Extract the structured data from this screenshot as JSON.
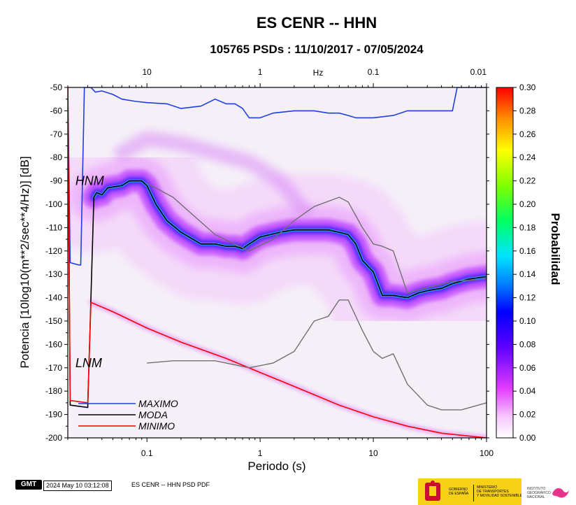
{
  "chart_data": {
    "type": "heatmap",
    "title": "ES CENR -- HHN",
    "subtitle": "105765 PSDs : 11/10/2017 - 07/05/2024",
    "xlabel": "Periodo (s)",
    "ylabel": "Potencia [10log10(m**2/sec**4/Hz)] [dB]",
    "x_scale": "log",
    "xlim": [
      0.02,
      100
    ],
    "ylim": [
      -200,
      -50
    ],
    "x_ticks": [
      "0.1",
      "1",
      "10",
      "100"
    ],
    "x_tick_values": [
      0.1,
      1,
      10,
      100
    ],
    "y_ticks": [
      "-50",
      "-60",
      "-70",
      "-80",
      "-90",
      "-100",
      "-110",
      "-120",
      "-130",
      "-140",
      "-150",
      "-160",
      "-170",
      "-180",
      "-190",
      "-200"
    ],
    "y_tick_values": [
      -50,
      -60,
      -70,
      -80,
      -90,
      -100,
      -110,
      -120,
      -130,
      -140,
      -150,
      -160,
      -170,
      -180,
      -190,
      -200
    ],
    "top_axis_label": "Hz",
    "top_ticks": [
      "10",
      "1",
      "0.1",
      "0.01"
    ],
    "top_tick_periods": [
      0.1,
      1,
      10,
      100
    ],
    "colorbar": {
      "label": "Probabilidad",
      "range": [
        0,
        0.3
      ],
      "ticks": [
        "0.30",
        "0.28",
        "0.26",
        "0.24",
        "0.22",
        "0.20",
        "0.18",
        "0.16",
        "0.14",
        "0.12",
        "0.10",
        "0.08",
        "0.06",
        "0.04",
        "0.02",
        "0.00"
      ],
      "tick_values": [
        0.3,
        0.28,
        0.26,
        0.24,
        0.22,
        0.2,
        0.18,
        0.16,
        0.14,
        0.12,
        0.1,
        0.08,
        0.06,
        0.04,
        0.02,
        0.0
      ]
    },
    "annotations": [
      {
        "text": "HNM",
        "x": 0.024,
        "y": -90
      },
      {
        "text": "LNM",
        "x": 0.024,
        "y": -168
      }
    ],
    "legend_position": "bottom-left",
    "series": [
      {
        "name": "MAXIMO",
        "color": "#1f3fe0",
        "points": [
          [
            0.02,
            -50
          ],
          [
            0.021,
            -125
          ],
          [
            0.025,
            -126
          ],
          [
            0.026,
            -126
          ],
          [
            0.028,
            -50
          ],
          [
            0.032,
            -50
          ],
          [
            0.035,
            -52
          ],
          [
            0.04,
            -51.5
          ],
          [
            0.05,
            -53
          ],
          [
            0.06,
            -55
          ],
          [
            0.08,
            -56
          ],
          [
            0.1,
            -56.5
          ],
          [
            0.15,
            -57
          ],
          [
            0.2,
            -59
          ],
          [
            0.3,
            -58
          ],
          [
            0.4,
            -55
          ],
          [
            0.5,
            -57
          ],
          [
            0.6,
            -57
          ],
          [
            0.7,
            -59
          ],
          [
            0.8,
            -63
          ],
          [
            1,
            -63
          ],
          [
            1.3,
            -61
          ],
          [
            2,
            -60
          ],
          [
            3,
            -60
          ],
          [
            4,
            -61
          ],
          [
            5,
            -61
          ],
          [
            6,
            -62
          ],
          [
            7,
            -63
          ],
          [
            10,
            -63
          ],
          [
            15,
            -62
          ],
          [
            20,
            -60
          ],
          [
            30,
            -60
          ],
          [
            40,
            -60
          ],
          [
            50,
            -60
          ],
          [
            55,
            -50
          ],
          [
            100,
            -50
          ]
        ]
      },
      {
        "name": "MODA",
        "color": "#000000",
        "points": [
          [
            0.02,
            -50
          ],
          [
            0.021,
            -186
          ],
          [
            0.03,
            -187
          ],
          [
            0.034,
            -97
          ],
          [
            0.036,
            -95
          ],
          [
            0.04,
            -96
          ],
          [
            0.045,
            -93
          ],
          [
            0.06,
            -92
          ],
          [
            0.07,
            -90
          ],
          [
            0.09,
            -90
          ],
          [
            0.1,
            -92
          ],
          [
            0.12,
            -100
          ],
          [
            0.15,
            -107
          ],
          [
            0.2,
            -112
          ],
          [
            0.3,
            -117
          ],
          [
            0.4,
            -117
          ],
          [
            0.5,
            -118
          ],
          [
            0.6,
            -118
          ],
          [
            0.7,
            -119
          ],
          [
            0.8,
            -117
          ],
          [
            1,
            -114
          ],
          [
            1.5,
            -112
          ],
          [
            2,
            -111
          ],
          [
            3,
            -111
          ],
          [
            4,
            -111
          ],
          [
            5,
            -112
          ],
          [
            6,
            -113
          ],
          [
            7,
            -117
          ],
          [
            8,
            -124
          ],
          [
            10,
            -129
          ],
          [
            12,
            -139
          ],
          [
            15,
            -139
          ],
          [
            20,
            -140
          ],
          [
            25,
            -138
          ],
          [
            30,
            -137
          ],
          [
            40,
            -136
          ],
          [
            50,
            -134
          ],
          [
            70,
            -132
          ],
          [
            100,
            -131
          ]
        ]
      },
      {
        "name": "MINIMO",
        "color": "#ff0000",
        "points": [
          [
            0.02,
            -50
          ],
          [
            0.021,
            -184
          ],
          [
            0.03,
            -185
          ],
          [
            0.032,
            -142
          ],
          [
            0.05,
            -146
          ],
          [
            0.1,
            -153
          ],
          [
            0.2,
            -159
          ],
          [
            0.5,
            -166
          ],
          [
            1,
            -172
          ],
          [
            2,
            -178
          ],
          [
            5,
            -186
          ],
          [
            10,
            -191
          ],
          [
            20,
            -195
          ],
          [
            40,
            -198
          ],
          [
            100,
            -200
          ]
        ]
      },
      {
        "name": "NHNM",
        "color": "#707070",
        "points": [
          [
            0.1,
            -91
          ],
          [
            0.17,
            -97
          ],
          [
            0.4,
            -113
          ],
          [
            0.8,
            -120
          ],
          [
            1.3,
            -115
          ],
          [
            2,
            -107
          ],
          [
            3,
            -101
          ],
          [
            5,
            -97
          ],
          [
            6,
            -99
          ],
          [
            8,
            -110
          ],
          [
            10,
            -117
          ],
          [
            12,
            -118
          ],
          [
            15,
            -120
          ],
          [
            20,
            -138
          ],
          [
            50,
            -133
          ],
          [
            100,
            -132
          ]
        ]
      },
      {
        "name": "NLNM",
        "color": "#707070",
        "points": [
          [
            0.1,
            -168
          ],
          [
            0.17,
            -167
          ],
          [
            0.4,
            -167
          ],
          [
            0.8,
            -170
          ],
          [
            1.3,
            -168
          ],
          [
            2,
            -163
          ],
          [
            3,
            -150
          ],
          [
            4,
            -148
          ],
          [
            5,
            -141
          ],
          [
            6,
            -141
          ],
          [
            8,
            -154
          ],
          [
            10,
            -163
          ],
          [
            12,
            -166
          ],
          [
            15,
            -164
          ],
          [
            20,
            -177
          ],
          [
            30,
            -186
          ],
          [
            40,
            -188
          ],
          [
            60,
            -188
          ],
          [
            100,
            -185
          ]
        ]
      }
    ]
  },
  "legend": {
    "items": [
      {
        "label": "MAXIMO",
        "color": "#1f3fe0"
      },
      {
        "label": "MODA",
        "color": "#000000"
      },
      {
        "label": "MINIMO",
        "color": "#ff0000"
      }
    ]
  },
  "footer": {
    "logo_text": "GMT",
    "timestamp": "2024 May 10 03:12:08",
    "caption": "ES CENR -- HHN PSD PDF",
    "gov_line1": "GOBIERNO",
    "gov_line2": "DE ESPAÑA",
    "ministry_line1": "MINISTERIO",
    "ministry_line2": "DE TRANSPORTES",
    "ministry_line3": "Y MOVILIDAD SOSTENIBLE",
    "ign_line1": "INSTITUTO",
    "ign_line2": "GEOGRÁFICO",
    "ign_line3": "NACIONAL"
  }
}
